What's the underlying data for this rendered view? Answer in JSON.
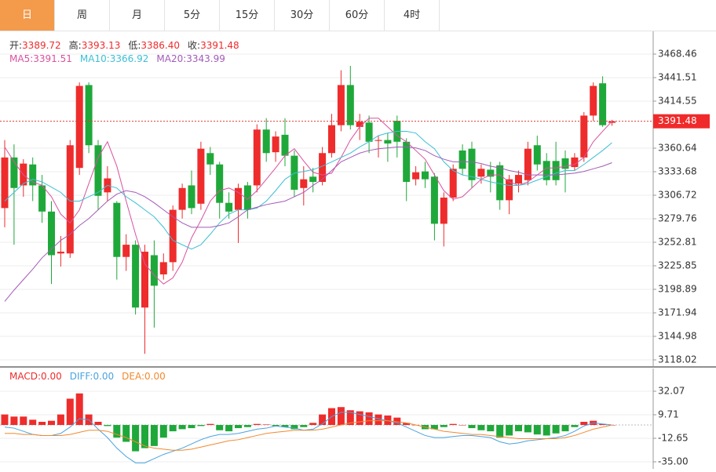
{
  "tabs": [
    "日",
    "周",
    "月",
    "5分",
    "15分",
    "30分",
    "60分",
    "4时"
  ],
  "active_tab": 0,
  "chart_data": [
    {
      "type": "candlestick",
      "info": [
        {
          "label": "开:",
          "value": "3389.72"
        },
        {
          "label": "高:",
          "value": "3393.13"
        },
        {
          "label": "低:",
          "value": "3386.40"
        },
        {
          "label": "收:",
          "value": "3391.48"
        }
      ],
      "up_color": "#ee2c2c",
      "down_color": "#1fa83a",
      "open": [
        3292,
        3350,
        3318,
        3342,
        3318,
        3288,
        3240,
        3240,
        3338,
        3433,
        3364,
        3310,
        3298,
        3236,
        3250,
        3178,
        3238,
        3216,
        3230,
        3290,
        3318,
        3297,
        3355,
        3342,
        3298,
        3290,
        3318,
        3318,
        3382,
        3356,
        3376,
        3352,
        3315,
        3328,
        3322,
        3355,
        3387,
        3433,
        3385,
        3390,
        3369,
        3370,
        3392,
        3368,
        3325,
        3334,
        3328,
        3274,
        3304,
        3358,
        3360,
        3328,
        3336,
        3341,
        3301,
        3320,
        3324,
        3364,
        3346,
        3346,
        3349,
        3339,
        3350,
        3398,
        3435,
        3389.72
      ],
      "high": [
        3370,
        3365,
        3348,
        3350,
        3330,
        3300,
        3260,
        3370,
        3436,
        3436,
        3370,
        3340,
        3300,
        3262,
        3255,
        3250,
        3255,
        3240,
        3295,
        3320,
        3335,
        3368,
        3362,
        3345,
        3310,
        3320,
        3322,
        3388,
        3395,
        3380,
        3395,
        3358,
        3340,
        3338,
        3362,
        3400,
        3450,
        3455,
        3400,
        3398,
        3375,
        3378,
        3398,
        3372,
        3340,
        3345,
        3332,
        3310,
        3342,
        3365,
        3368,
        3342,
        3345,
        3345,
        3330,
        3335,
        3368,
        3375,
        3355,
        3368,
        3358,
        3355,
        3402,
        3436,
        3443,
        3393.13
      ],
      "low": [
        3270,
        3250,
        3305,
        3300,
        3275,
        3205,
        3225,
        3235,
        3330,
        3355,
        3290,
        3300,
        3210,
        3220,
        3170,
        3125,
        3155,
        3210,
        3220,
        3280,
        3285,
        3290,
        3330,
        3280,
        3280,
        3252,
        3280,
        3310,
        3345,
        3345,
        3340,
        3305,
        3295,
        3310,
        3318,
        3350,
        3380,
        3382,
        3370,
        3355,
        3350,
        3345,
        3350,
        3300,
        3318,
        3315,
        3255,
        3248,
        3300,
        3330,
        3315,
        3320,
        3310,
        3290,
        3285,
        3310,
        3318,
        3335,
        3318,
        3318,
        3310,
        3335,
        3345,
        3392,
        3385,
        3386.4
      ],
      "close": [
        3350,
        3315,
        3343,
        3318,
        3288,
        3238,
        3242,
        3364,
        3432,
        3364,
        3306,
        3326,
        3236,
        3250,
        3178,
        3242,
        3203,
        3230,
        3290,
        3315,
        3292,
        3360,
        3342,
        3298,
        3288,
        3315,
        3290,
        3382,
        3355,
        3374,
        3352,
        3313,
        3325,
        3322,
        3355,
        3387,
        3433,
        3387,
        3391,
        3368,
        3370,
        3366,
        3368,
        3322,
        3333,
        3325,
        3274,
        3304,
        3337,
        3337,
        3324,
        3337,
        3328,
        3301,
        3325,
        3330,
        3360,
        3342,
        3324,
        3324,
        3337,
        3350,
        3398,
        3432,
        3387,
        3391.48
      ],
      "series": [
        {
          "name": "MA5:",
          "value_label": "3391.51",
          "color": "#d9529f",
          "values": [
            3362,
            3345,
            3330,
            3322,
            3318,
            3305,
            3285,
            3275,
            3290,
            3320,
            3350,
            3368,
            3340,
            3300,
            3262,
            3228,
            3215,
            3205,
            3212,
            3230,
            3258,
            3278,
            3300,
            3312,
            3315,
            3310,
            3302,
            3312,
            3325,
            3338,
            3352,
            3360,
            3346,
            3333,
            3330,
            3332,
            3350,
            3370,
            3385,
            3395,
            3395,
            3385,
            3375,
            3368,
            3358,
            3348,
            3330,
            3312,
            3302,
            3305,
            3315,
            3325,
            3330,
            3330,
            3322,
            3318,
            3322,
            3330,
            3338,
            3338,
            3340,
            3342,
            3350,
            3368,
            3380,
            3391.51
          ]
        },
        {
          "name": "MA10:",
          "value_label": "3366.92",
          "color": "#3cc0d4",
          "values": [
            3300,
            3310,
            3320,
            3325,
            3322,
            3316,
            3310,
            3300,
            3300,
            3305,
            3310,
            3318,
            3315,
            3305,
            3298,
            3290,
            3282,
            3270,
            3255,
            3250,
            3245,
            3250,
            3262,
            3275,
            3285,
            3290,
            3290,
            3292,
            3300,
            3312,
            3325,
            3332,
            3334,
            3336,
            3340,
            3345,
            3350,
            3355,
            3362,
            3368,
            3375,
            3378,
            3380,
            3380,
            3378,
            3368,
            3360,
            3345,
            3335,
            3330,
            3328,
            3325,
            3322,
            3320,
            3318,
            3318,
            3320,
            3324,
            3328,
            3332,
            3335,
            3335,
            3342,
            3350,
            3358,
            3366.92
          ]
        },
        {
          "name": "MA20:",
          "value_label": "3343.99",
          "color": "#a25bb8",
          "values": [
            3185,
            3198,
            3210,
            3222,
            3235,
            3245,
            3255,
            3262,
            3272,
            3280,
            3290,
            3300,
            3308,
            3312,
            3310,
            3305,
            3298,
            3290,
            3282,
            3275,
            3270,
            3270,
            3270,
            3272,
            3275,
            3282,
            3290,
            3293,
            3296,
            3298,
            3300,
            3305,
            3310,
            3318,
            3325,
            3335,
            3345,
            3350,
            3355,
            3358,
            3360,
            3361,
            3362,
            3362,
            3361,
            3358,
            3352,
            3348,
            3345,
            3345,
            3345,
            3343,
            3340,
            3338,
            3335,
            3333,
            3330,
            3330,
            3330,
            3330,
            3331,
            3332,
            3334,
            3337,
            3340,
            3343.99
          ]
        }
      ],
      "last_price": 3391.48,
      "ylim": [
        3110.83,
        3494.52
      ],
      "yticks": [
        3468.46,
        3441.51,
        3414.55,
        3360.64,
        3333.68,
        3306.72,
        3279.76,
        3252.81,
        3225.85,
        3198.89,
        3171.94,
        3144.98,
        3118.02
      ],
      "grid": true
    },
    {
      "type": "macd",
      "histogram": {
        "name": "MACD:",
        "value_label": "0.00",
        "up_color": "#ee2c2c",
        "down_color": "#1fa83a",
        "values": [
          10,
          8,
          8,
          5,
          3,
          4,
          10,
          25,
          30,
          10,
          3,
          -1,
          -12,
          -16,
          -25,
          -22,
          -20,
          -12,
          -6,
          -4,
          -3,
          -1,
          1,
          -5,
          -6,
          -3,
          -2,
          1,
          0.5,
          -1,
          -2,
          -4,
          -2,
          2,
          10,
          16,
          17,
          14,
          13,
          12,
          10,
          9,
          7,
          2,
          0,
          -4,
          -4,
          -2,
          1,
          0,
          -3,
          -5,
          -6,
          -12,
          -10,
          -6,
          -7,
          -9,
          -10,
          -8,
          -6,
          -2,
          3,
          4,
          1,
          0
        ]
      },
      "series": [
        {
          "name": "DIFF:",
          "value_label": "0.00",
          "color": "#4aa3df",
          "values": [
            -2,
            -3,
            -6,
            -9,
            -10,
            -10,
            -8,
            -2,
            6,
            5,
            -4,
            -12,
            -22,
            -30,
            -36,
            -36,
            -32,
            -28,
            -25,
            -22,
            -18,
            -14,
            -11,
            -9,
            -9,
            -8,
            -6,
            -4,
            -3,
            -1,
            -2,
            -3,
            -5,
            -4,
            1,
            8,
            12,
            12,
            10,
            8,
            6,
            4,
            2,
            -2,
            -6,
            -10,
            -12,
            -12,
            -11,
            -10,
            -10,
            -11,
            -12,
            -16,
            -18,
            -17,
            -15,
            -14,
            -13,
            -12,
            -10,
            -6,
            -1,
            2,
            1,
            0
          ]
        },
        {
          "name": "DEA:",
          "value_label": "0.00",
          "color": "#f08a2f",
          "values": [
            -8,
            -8,
            -9,
            -9,
            -10,
            -10,
            -10,
            -9,
            -7,
            -5,
            -5,
            -6,
            -9,
            -12,
            -16,
            -20,
            -22,
            -23,
            -24,
            -24,
            -23,
            -21,
            -19,
            -17,
            -15,
            -14,
            -12,
            -10,
            -8,
            -7,
            -6,
            -5,
            -5,
            -5,
            -4,
            -2,
            0,
            2,
            3,
            4,
            4,
            4,
            3,
            2,
            0,
            -2,
            -4,
            -6,
            -7,
            -8,
            -9,
            -9,
            -10,
            -11,
            -12,
            -13,
            -13,
            -13,
            -13,
            -13,
            -12,
            -10,
            -7,
            -4,
            -2,
            0
          ]
        }
      ],
      "ylim": [
        -41.71,
        53.68
      ],
      "yticks": [
        32.07,
        9.71,
        -12.65,
        {
          "value": -35,
          "label": "-35.00"
        }
      ],
      "grid": true
    }
  ]
}
